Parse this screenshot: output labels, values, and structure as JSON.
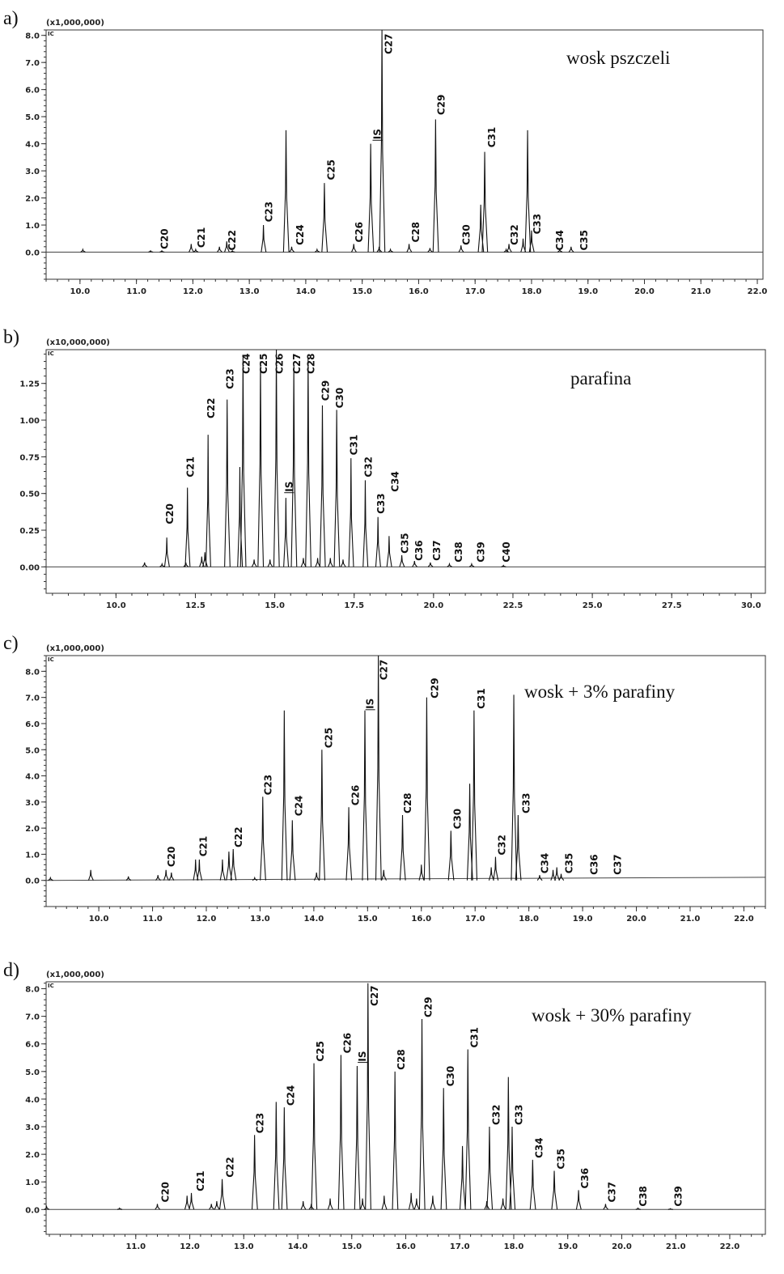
{
  "chart_data": [
    {
      "type": "line",
      "panel_label": "a)",
      "title": "wosk pszczeli",
      "detector": "IC",
      "y_multiplier": "(x1,000,000)",
      "xlim": [
        9.4,
        22.1
      ],
      "ylim": [
        -1.0,
        8.2
      ],
      "xticks": [
        "10.0",
        "11.0",
        "12.0",
        "13.0",
        "14.0",
        "15.0",
        "16.0",
        "17.0",
        "18.0",
        "19.0",
        "20.0",
        "21.0",
        "22.0"
      ],
      "yticks": [
        "0.0",
        "1.0",
        "2.0",
        "3.0",
        "4.0",
        "5.0",
        "6.0",
        "7.0",
        "8.0"
      ],
      "baseline_end": 0.0,
      "peaks": [
        [
          10.05,
          0.1
        ],
        [
          11.25,
          0.05
        ],
        [
          11.45,
          0.05
        ],
        [
          11.97,
          0.3
        ],
        [
          12.05,
          0.1
        ],
        [
          12.47,
          0.2
        ],
        [
          12.6,
          0.4
        ],
        [
          12.7,
          0.05
        ],
        [
          13.25,
          1.0
        ],
        [
          13.65,
          4.5
        ],
        [
          13.75,
          0.2
        ],
        [
          14.2,
          0.1
        ],
        [
          14.33,
          2.55
        ],
        [
          14.85,
          0.3
        ],
        [
          15.15,
          4.0
        ],
        [
          15.3,
          0.2
        ],
        [
          15.35,
          8.2
        ],
        [
          15.5,
          0.1
        ],
        [
          15.83,
          0.3
        ],
        [
          16.2,
          0.15
        ],
        [
          16.3,
          4.9
        ],
        [
          16.75,
          0.25
        ],
        [
          17.1,
          1.75
        ],
        [
          17.17,
          3.7
        ],
        [
          17.55,
          0.1
        ],
        [
          17.6,
          0.3
        ],
        [
          17.85,
          0.5
        ],
        [
          17.93,
          4.5
        ],
        [
          18.0,
          0.8
        ],
        [
          18.5,
          0.1
        ],
        [
          18.7,
          0.2
        ]
      ],
      "labels": [
        [
          "C20",
          11.5,
          0.05
        ],
        [
          "C21",
          12.15,
          0.1
        ],
        [
          "C22",
          12.7,
          0.0
        ],
        [
          "C23",
          13.35,
          1.05
        ],
        [
          "C24",
          13.9,
          0.2
        ],
        [
          "C25",
          14.45,
          2.6
        ],
        [
          "C26",
          14.95,
          0.3
        ],
        [
          "IS",
          15.27,
          4.1
        ],
        [
          "C27",
          15.47,
          7.5
        ],
        [
          "C28",
          15.95,
          0.3
        ],
        [
          "C29",
          16.4,
          5.0
        ],
        [
          "C30",
          16.85,
          0.2
        ],
        [
          "C31",
          17.3,
          3.8
        ],
        [
          "C32",
          17.7,
          0.2
        ],
        [
          "C33",
          18.1,
          0.6
        ],
        [
          "C34",
          18.5,
          0.0
        ],
        [
          "C35",
          18.93,
          0.0
        ]
      ]
    },
    {
      "type": "line",
      "panel_label": "b)",
      "title": "parafina",
      "detector": "IC",
      "y_multiplier": "(x10,000,000)",
      "xlim": [
        7.8,
        30.45
      ],
      "ylim": [
        -0.18,
        1.48
      ],
      "xticks": [
        "10.0",
        "12.5",
        "15.0",
        "17.5",
        "20.0",
        "22.5",
        "25.0",
        "27.5",
        "30.0"
      ],
      "yticks": [
        "0.00",
        "0.25",
        "0.50",
        "0.75",
        "1.00",
        "1.25"
      ],
      "baseline_end": 0.0,
      "peaks": [
        [
          10.9,
          0.03
        ],
        [
          11.45,
          0.02
        ],
        [
          11.6,
          0.2
        ],
        [
          12.2,
          0.03
        ],
        [
          12.25,
          0.54
        ],
        [
          12.7,
          0.07
        ],
        [
          12.8,
          0.1
        ],
        [
          12.9,
          0.9
        ],
        [
          13.5,
          1.14
        ],
        [
          13.9,
          0.68
        ],
        [
          14.0,
          1.43
        ],
        [
          14.35,
          0.05
        ],
        [
          14.55,
          1.4
        ],
        [
          14.85,
          0.05
        ],
        [
          15.05,
          1.48
        ],
        [
          15.35,
          0.47
        ],
        [
          15.6,
          1.37
        ],
        [
          15.9,
          0.06
        ],
        [
          16.05,
          1.42
        ],
        [
          16.35,
          0.06
        ],
        [
          16.5,
          1.1
        ],
        [
          16.75,
          0.06
        ],
        [
          16.95,
          1.07
        ],
        [
          17.15,
          0.05
        ],
        [
          17.4,
          0.74
        ],
        [
          17.85,
          0.59
        ],
        [
          18.25,
          0.34
        ],
        [
          18.6,
          0.21
        ],
        [
          19.0,
          0.08
        ],
        [
          19.4,
          0.04
        ],
        [
          19.9,
          0.03
        ],
        [
          20.5,
          0.02
        ],
        [
          21.2,
          0.02
        ],
        [
          22.2,
          0.01
        ]
      ],
      "labels": [
        [
          "C20",
          11.7,
          0.28
        ],
        [
          "C21",
          12.35,
          0.6
        ],
        [
          "C22",
          13.0,
          1.0
        ],
        [
          "C23",
          13.6,
          1.2
        ],
        [
          "C24",
          14.1,
          1.36
        ],
        [
          "C25",
          14.65,
          1.36
        ],
        [
          "C26",
          15.15,
          1.36
        ],
        [
          "IS",
          15.45,
          0.5
        ],
        [
          "C27",
          15.7,
          1.36
        ],
        [
          "C28",
          16.15,
          1.36
        ],
        [
          "C29",
          16.6,
          1.12
        ],
        [
          "C30",
          17.05,
          1.07
        ],
        [
          "C31",
          17.5,
          0.75
        ],
        [
          "C32",
          17.95,
          0.6
        ],
        [
          "C33",
          18.35,
          0.35
        ],
        [
          "C34",
          18.8,
          0.5
        ],
        [
          "C35",
          19.1,
          0.08
        ],
        [
          "C36",
          19.55,
          0.03
        ],
        [
          "C37",
          20.1,
          0.03
        ],
        [
          "C38",
          20.8,
          0.02
        ],
        [
          "C39",
          21.5,
          0.02
        ],
        [
          "C40",
          22.3,
          0.02
        ]
      ]
    },
    {
      "type": "line",
      "panel_label": "c)",
      "title": "wosk + 3% parafiny",
      "detector": "IC",
      "y_multiplier": "(x1,000,000)",
      "xlim": [
        9.02,
        22.4
      ],
      "ylim": [
        -1.0,
        8.6
      ],
      "xticks": [
        "10.0",
        "11.0",
        "12.0",
        "13.0",
        "14.0",
        "15.0",
        "16.0",
        "17.0",
        "18.0",
        "19.0",
        "20.0",
        "21.0",
        "22.0"
      ],
      "yticks": [
        "0.0",
        "1.0",
        "2.0",
        "3.0",
        "4.0",
        "5.0",
        "6.0",
        "7.0",
        "8.0"
      ],
      "baseline_end": 0.12,
      "peaks": [
        [
          9.1,
          0.1
        ],
        [
          9.85,
          0.4
        ],
        [
          10.55,
          0.15
        ],
        [
          11.1,
          0.2
        ],
        [
          11.25,
          0.4
        ],
        [
          11.35,
          0.3
        ],
        [
          11.8,
          0.8
        ],
        [
          11.87,
          0.8
        ],
        [
          12.3,
          0.8
        ],
        [
          12.42,
          1.1
        ],
        [
          12.5,
          1.2
        ],
        [
          12.9,
          0.1
        ],
        [
          13.05,
          3.2
        ],
        [
          13.45,
          6.5
        ],
        [
          13.6,
          2.3
        ],
        [
          14.05,
          0.3
        ],
        [
          14.15,
          5.0
        ],
        [
          14.65,
          2.8
        ],
        [
          14.95,
          6.5
        ],
        [
          15.2,
          8.6
        ],
        [
          15.3,
          0.4
        ],
        [
          15.65,
          2.5
        ],
        [
          16.0,
          0.6
        ],
        [
          16.1,
          7.0
        ],
        [
          16.55,
          1.9
        ],
        [
          16.9,
          3.7
        ],
        [
          16.98,
          6.5
        ],
        [
          17.3,
          0.5
        ],
        [
          17.38,
          0.9
        ],
        [
          17.72,
          7.1
        ],
        [
          17.8,
          2.5
        ],
        [
          18.2,
          0.2
        ],
        [
          18.45,
          0.4
        ],
        [
          18.52,
          0.5
        ],
        [
          18.6,
          0.25
        ]
      ],
      "labels": [
        [
          "C20",
          11.35,
          0.45
        ],
        [
          "C21",
          11.95,
          0.85
        ],
        [
          "C22",
          12.6,
          1.2
        ],
        [
          "C23",
          13.15,
          3.2
        ],
        [
          "C24",
          13.72,
          2.4
        ],
        [
          "C25",
          14.28,
          5.0
        ],
        [
          "C26",
          14.78,
          2.8
        ],
        [
          "IS",
          15.05,
          6.5
        ],
        [
          "C27",
          15.3,
          7.6
        ],
        [
          "C28",
          15.75,
          2.5
        ],
        [
          "C29",
          16.25,
          6.9
        ],
        [
          "C30",
          16.67,
          1.9
        ],
        [
          "C31",
          17.12,
          6.5
        ],
        [
          "C32",
          17.5,
          0.9
        ],
        [
          "C33",
          17.95,
          2.5
        ],
        [
          "C34",
          18.3,
          0.2
        ],
        [
          "C35",
          18.75,
          0.2
        ],
        [
          "C36",
          19.22,
          0.15
        ],
        [
          "C37",
          19.65,
          0.15
        ]
      ]
    },
    {
      "type": "line",
      "panel_label": "d)",
      "title": "wosk + 30% parafiny",
      "detector": "IC",
      "y_multiplier": "(x1,000,000)",
      "xlim": [
        9.34,
        22.66
      ],
      "ylim": [
        -0.9,
        8.25
      ],
      "xticks": [
        "11.0",
        "12.0",
        "13.0",
        "14.0",
        "15.0",
        "16.0",
        "17.0",
        "18.0",
        "19.0",
        "20.0",
        "21.0",
        "22.0"
      ],
      "yticks": [
        "0.0",
        "1.0",
        "2.0",
        "3.0",
        "4.0",
        "5.0",
        "6.0",
        "7.0",
        "8.0"
      ],
      "baseline_end": 0.0,
      "peaks": [
        [
          9.35,
          0.1
        ],
        [
          10.7,
          0.05
        ],
        [
          11.4,
          0.2
        ],
        [
          11.95,
          0.5
        ],
        [
          12.03,
          0.6
        ],
        [
          12.4,
          0.2
        ],
        [
          12.5,
          0.3
        ],
        [
          12.6,
          1.1
        ],
        [
          13.2,
          2.7
        ],
        [
          13.6,
          3.9
        ],
        [
          13.75,
          3.7
        ],
        [
          14.1,
          0.3
        ],
        [
          14.25,
          0.2
        ],
        [
          14.3,
          5.3
        ],
        [
          14.6,
          0.4
        ],
        [
          14.8,
          5.6
        ],
        [
          15.1,
          5.2
        ],
        [
          15.2,
          0.4
        ],
        [
          15.3,
          8.2
        ],
        [
          15.6,
          0.5
        ],
        [
          15.8,
          5.0
        ],
        [
          16.1,
          0.6
        ],
        [
          16.2,
          0.4
        ],
        [
          16.3,
          6.9
        ],
        [
          16.5,
          0.5
        ],
        [
          16.7,
          4.4
        ],
        [
          17.05,
          2.3
        ],
        [
          17.15,
          5.8
        ],
        [
          17.5,
          0.3
        ],
        [
          17.55,
          3.0
        ],
        [
          17.8,
          0.4
        ],
        [
          17.9,
          4.8
        ],
        [
          17.97,
          3.0
        ],
        [
          18.35,
          1.8
        ],
        [
          18.75,
          1.4
        ],
        [
          19.2,
          0.7
        ],
        [
          19.7,
          0.2
        ],
        [
          20.3,
          0.05
        ],
        [
          20.9,
          0.03
        ]
      ],
      "labels": [
        [
          "C20",
          11.55,
          0.2
        ],
        [
          "C21",
          12.2,
          0.6
        ],
        [
          "C22",
          12.75,
          1.1
        ],
        [
          "C23",
          13.3,
          2.7
        ],
        [
          "C24",
          13.87,
          3.7
        ],
        [
          "C25",
          14.42,
          5.3
        ],
        [
          "C26",
          14.92,
          5.6
        ],
        [
          "IS",
          15.2,
          5.3
        ],
        [
          "C27",
          15.42,
          7.6
        ],
        [
          "C28",
          15.92,
          5.0
        ],
        [
          "C29",
          16.42,
          6.9
        ],
        [
          "C30",
          16.83,
          4.4
        ],
        [
          "C31",
          17.27,
          5.8
        ],
        [
          "C32",
          17.68,
          3.0
        ],
        [
          "C33",
          18.1,
          3.0
        ],
        [
          "C34",
          18.47,
          1.8
        ],
        [
          "C35",
          18.88,
          1.4
        ],
        [
          "C36",
          19.32,
          0.7
        ],
        [
          "C37",
          19.82,
          0.2
        ],
        [
          "C38",
          20.4,
          0.05
        ],
        [
          "C39",
          21.05,
          0.05
        ]
      ]
    }
  ]
}
